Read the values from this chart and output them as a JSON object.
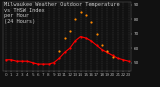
{
  "title": "Milwaukee Weather Outdoor Temperature\nvs THSW Index\nper Hour\n(24 Hours)",
  "bg_color": "#111111",
  "plot_bg_color": "#111111",
  "grid_color": "#555555",
  "hours": [
    0,
    1,
    2,
    3,
    4,
    5,
    6,
    7,
    8,
    9,
    10,
    11,
    12,
    13,
    14,
    15,
    16,
    17,
    18,
    19,
    20,
    21,
    22,
    23
  ],
  "temp": [
    52,
    52,
    51,
    51,
    51,
    50,
    49,
    49,
    49,
    50,
    53,
    57,
    60,
    65,
    68,
    67,
    65,
    62,
    59,
    57,
    55,
    53,
    52,
    51
  ],
  "thsw": [
    null,
    null,
    null,
    null,
    null,
    null,
    null,
    null,
    null,
    null,
    58,
    67,
    72,
    80,
    85,
    83,
    78,
    70,
    62,
    58,
    54,
    null,
    null,
    null
  ],
  "temp_color": "#ff0000",
  "thsw_color": "#ff8800",
  "dot_size": 2.5,
  "ylim": [
    44,
    92
  ],
  "ytick_vals": [
    50,
    60,
    70,
    80,
    90
  ],
  "ytick_labels": [
    "50",
    "60",
    "70",
    "80",
    "90"
  ],
  "ylabel_color": "#cccccc",
  "xlabel_fontsize": 3.0,
  "ylabel_fontsize": 3.0,
  "title_fontsize": 3.8,
  "title_color": "#cccccc",
  "dpi": 100,
  "line_width": 0.8
}
